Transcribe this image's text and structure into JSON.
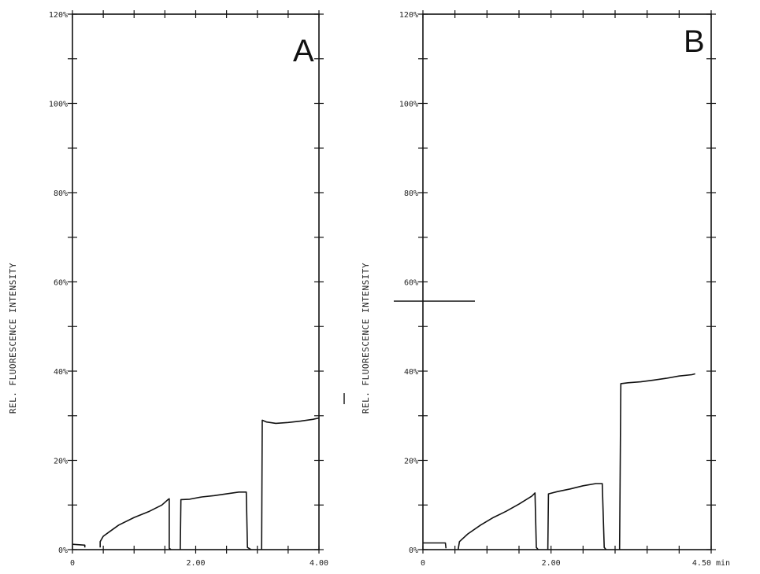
{
  "chart_data": [
    {
      "type": "line",
      "panel_label": "A",
      "ylabel": "REL. FLUORESCENCE INTENSITY",
      "xlim": [
        0,
        4.0
      ],
      "ylim": [
        0,
        120
      ],
      "x_ticks": [
        {
          "value": 0,
          "label": "0"
        },
        {
          "value": 2.0,
          "label": "2.00"
        },
        {
          "value": 4.0,
          "label": "4.00"
        }
      ],
      "y_ticks": [
        {
          "value": 0,
          "label": "0%"
        },
        {
          "value": 20,
          "label": "20%"
        },
        {
          "value": 40,
          "label": "40%"
        },
        {
          "value": 60,
          "label": "60%"
        },
        {
          "value": 80,
          "label": "80%"
        },
        {
          "value": 100,
          "label": "100%"
        },
        {
          "value": 120,
          "label": "120%"
        }
      ],
      "segments": [
        {
          "points": [
            [
              0.0,
              1.2
            ],
            [
              0.2,
              1.0
            ],
            [
              0.2,
              0.5
            ]
          ]
        },
        {
          "points": [
            [
              0.45,
              0.5
            ],
            [
              0.45,
              1.8
            ],
            [
              0.5,
              3.0
            ],
            [
              0.6,
              4.0
            ],
            [
              0.75,
              5.5
            ],
            [
              1.0,
              7.2
            ],
            [
              1.25,
              8.6
            ],
            [
              1.45,
              10.0
            ],
            [
              1.55,
              11.2
            ],
            [
              1.57,
              11.4
            ],
            [
              1.57,
              0.3
            ],
            [
              1.6,
              0.0
            ]
          ]
        },
        {
          "points": [
            [
              1.75,
              0.0
            ],
            [
              1.76,
              11.2
            ],
            [
              1.9,
              11.3
            ],
            [
              2.1,
              11.8
            ],
            [
              2.3,
              12.1
            ],
            [
              2.5,
              12.5
            ],
            [
              2.7,
              12.9
            ],
            [
              2.82,
              12.9
            ],
            [
              2.84,
              0.5
            ],
            [
              2.9,
              0.0
            ]
          ]
        },
        {
          "points": [
            [
              3.07,
              0.0
            ],
            [
              3.08,
              29.0
            ],
            [
              3.15,
              28.6
            ],
            [
              3.3,
              28.3
            ],
            [
              3.5,
              28.5
            ],
            [
              3.7,
              28.8
            ],
            [
              3.9,
              29.2
            ],
            [
              4.0,
              29.5
            ]
          ]
        }
      ]
    },
    {
      "type": "line",
      "panel_label": "B",
      "ylabel": "REL. FLUORESCENCE INTENSITY",
      "xlim": [
        0,
        4.5
      ],
      "ylim": [
        0,
        120
      ],
      "x_ticks": [
        {
          "value": 0,
          "label": "0"
        },
        {
          "value": 2.0,
          "label": "2.00"
        },
        {
          "value": 4.5,
          "label": "4.50 min"
        }
      ],
      "y_ticks": [
        {
          "value": 0,
          "label": "0%"
        },
        {
          "value": 20,
          "label": "20%"
        },
        {
          "value": 40,
          "label": "40%"
        },
        {
          "value": 60,
          "label": "60%"
        },
        {
          "value": 80,
          "label": "80%"
        },
        {
          "value": 100,
          "label": "100%"
        },
        {
          "value": 120,
          "label": "120%"
        }
      ],
      "segments": [
        {
          "points": [
            [
              0.0,
              1.5
            ],
            [
              0.35,
              1.5
            ],
            [
              0.36,
              0.3
            ]
          ]
        },
        {
          "points": [
            [
              0.55,
              0.0
            ],
            [
              0.57,
              1.8
            ],
            [
              0.7,
              3.5
            ],
            [
              0.9,
              5.5
            ],
            [
              1.1,
              7.2
            ],
            [
              1.3,
              8.6
            ],
            [
              1.5,
              10.2
            ],
            [
              1.7,
              12.0
            ],
            [
              1.75,
              12.7
            ],
            [
              1.77,
              0.5
            ],
            [
              1.8,
              0.0
            ]
          ]
        },
        {
          "points": [
            [
              1.95,
              0.0
            ],
            [
              1.96,
              12.5
            ],
            [
              2.1,
              13.0
            ],
            [
              2.3,
              13.6
            ],
            [
              2.5,
              14.3
            ],
            [
              2.7,
              14.8
            ],
            [
              2.8,
              14.8
            ],
            [
              2.83,
              0.5
            ],
            [
              2.86,
              0.0
            ]
          ]
        },
        {
          "points": [
            [
              3.07,
              0.0
            ],
            [
              3.09,
              37.2
            ],
            [
              3.2,
              37.4
            ],
            [
              3.4,
              37.6
            ],
            [
              3.6,
              38.0
            ],
            [
              3.8,
              38.4
            ],
            [
              4.0,
              38.9
            ],
            [
              4.2,
              39.2
            ],
            [
              4.25,
              39.4
            ]
          ]
        }
      ]
    }
  ]
}
